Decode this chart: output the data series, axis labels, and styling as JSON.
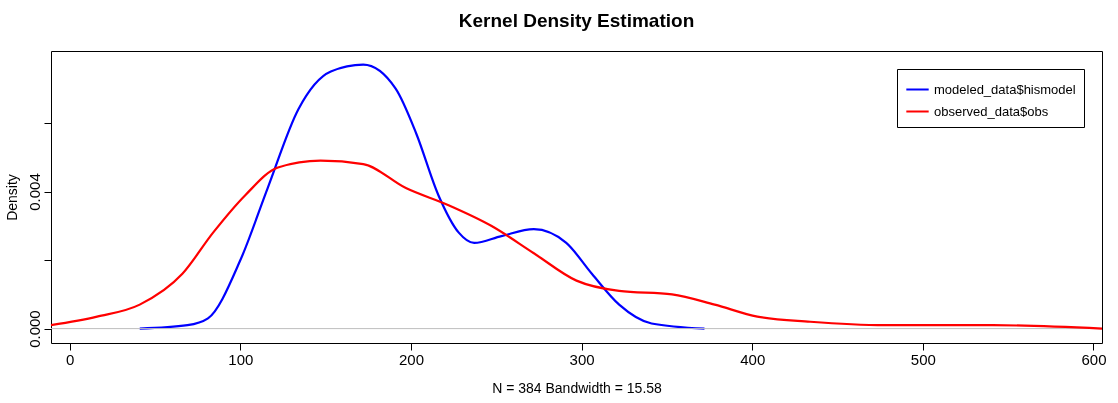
{
  "chart_data": {
    "type": "line",
    "title": "Kernel Density Estimation",
    "xlabel": "N = 384   Bandwidth = 15.58",
    "ylabel": "Density",
    "xlim": [
      -11,
      605
    ],
    "ylim": [
      -0.00042,
      0.0081
    ],
    "xticks": [
      0,
      100,
      200,
      300,
      400,
      500,
      600
    ],
    "yticks": [
      {
        "value": 0,
        "label": "0.000"
      },
      {
        "value": 0.002,
        "label": null
      },
      {
        "value": 0.004,
        "label": "0.004"
      },
      {
        "value": 0.006,
        "label": null
      }
    ],
    "grid": false,
    "legend": "top right",
    "marker": "none",
    "line_style": "solid",
    "ref_lines": [
      {
        "axis": "y",
        "value": 0,
        "color": "#bebebe"
      }
    ],
    "series": [
      {
        "name": "modeled_data$hismodel",
        "color": "#0000ff",
        "x": [
          41,
          69,
          81,
          100,
          116,
          134,
          153,
          172,
          191,
          203,
          216,
          228,
          237,
          253,
          272,
          291,
          306,
          322,
          341,
          372
        ],
        "values": [
          0,
          0.0001,
          0.0003,
          0.002,
          0.0041,
          0.0064,
          0.0075,
          0.0077,
          0.007,
          0.0057,
          0.0039,
          0.0028,
          0.0025,
          0.0027,
          0.0029,
          0.0025,
          0.0016,
          0.0007,
          0.00015,
          0
        ]
      },
      {
        "name": "observed_data$obs",
        "color": "#ff0000",
        "x": [
          -11,
          16,
          41,
          66,
          84,
          103,
          122,
          147,
          172,
          197,
          222,
          247,
          272,
          297,
          322,
          353,
          378,
          403,
          434,
          478,
          541,
          605
        ],
        "values": [
          0.0001,
          0.00035,
          0.0007,
          0.0016,
          0.0028,
          0.0039,
          0.0047,
          0.0049,
          0.0048,
          0.0041,
          0.0036,
          0.003,
          0.0022,
          0.0014,
          0.0011,
          0.001,
          0.0007,
          0.00035,
          0.0002,
          0.0001,
          0.0001,
          0
        ]
      }
    ]
  }
}
